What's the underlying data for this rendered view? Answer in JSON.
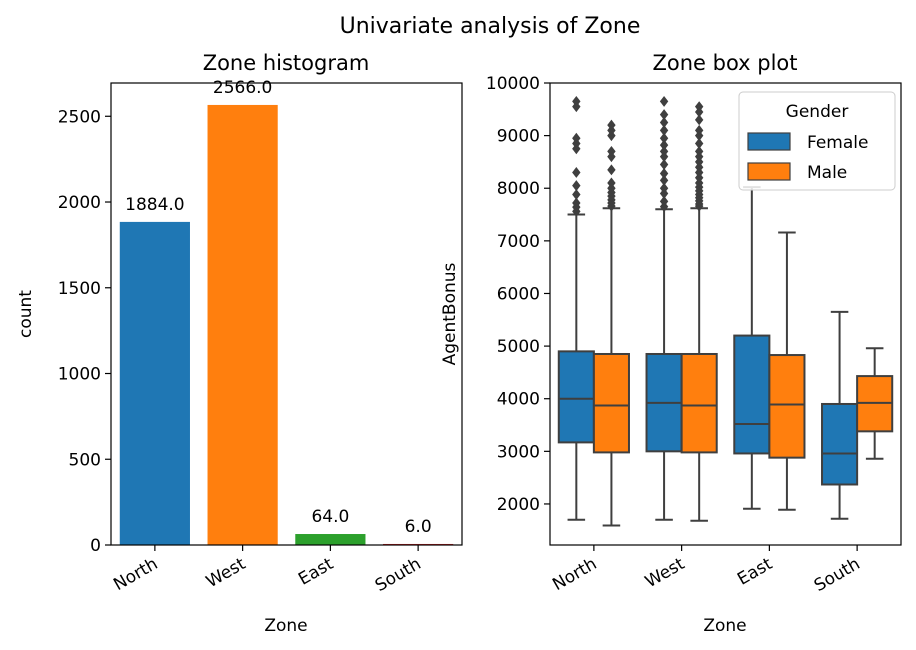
{
  "figure": {
    "suptitle": "Univariate analysis of Zone"
  },
  "chart_data": [
    {
      "type": "bar",
      "title": "Zone histogram",
      "xlabel": "Zone",
      "ylabel": "count",
      "categories": [
        "North",
        "West",
        "East",
        "South"
      ],
      "values": [
        1884.0,
        2566.0,
        64.0,
        6.0
      ],
      "value_labels": [
        "1884.0",
        "2566.0",
        "64.0",
        "6.0"
      ],
      "colors": [
        "#1f77b4",
        "#ff7f0e",
        "#2ca02c",
        "#d62728"
      ],
      "ylim": [
        0,
        2694
      ],
      "yticks": [
        0,
        500,
        1000,
        1500,
        2000,
        2500
      ],
      "ytick_labels": [
        "0",
        "500",
        "1000",
        "1500",
        "2000",
        "2500"
      ],
      "grid": false
    },
    {
      "type": "box",
      "title": "Zone box plot",
      "xlabel": "Zone",
      "ylabel": "AgentBonus",
      "categories": [
        "North",
        "West",
        "East",
        "South"
      ],
      "ylim": [
        1220,
        10000
      ],
      "yticks": [
        2000,
        3000,
        4000,
        5000,
        6000,
        7000,
        8000,
        9000,
        10000
      ],
      "ytick_labels": [
        "2000",
        "3000",
        "4000",
        "5000",
        "6000",
        "7000",
        "8000",
        "9000",
        "10000"
      ],
      "legend": {
        "title": "Gender",
        "position": "top-right"
      },
      "grid": false,
      "series": [
        {
          "name": "Female",
          "color": "#1f77b4",
          "boxes": [
            {
              "category": "North",
              "whislo": 1700,
              "q1": 3170,
              "median": 4000,
              "q3": 4900,
              "whishi": 7500,
              "fliers": [
                7560,
                7640,
                7720,
                7880,
                8050,
                8300,
                8750,
                8850,
                8950,
                9550,
                9650
              ]
            },
            {
              "category": "West",
              "whislo": 1700,
              "q1": 3000,
              "median": 3920,
              "q3": 4850,
              "whishi": 7600,
              "fliers": [
                7650,
                7750,
                7900,
                8000,
                8150,
                8280,
                8450,
                8600,
                8700,
                8820,
                8950,
                9100,
                9250,
                9400,
                9650
              ]
            },
            {
              "category": "East",
              "whislo": 1910,
              "q1": 2960,
              "median": 3520,
              "q3": 5200,
              "whishi": 8020,
              "fliers": []
            },
            {
              "category": "South",
              "whislo": 1720,
              "q1": 2370,
              "median": 2960,
              "q3": 3900,
              "whishi": 5650,
              "fliers": []
            }
          ]
        },
        {
          "name": "Male",
          "color": "#ff7f0e",
          "boxes": [
            {
              "category": "North",
              "whislo": 1590,
              "q1": 2980,
              "median": 3870,
              "q3": 4850,
              "whishi": 7620,
              "fliers": [
                7660,
                7720,
                7780,
                7850,
                7920,
                8000,
                8100,
                8350,
                8600,
                8700,
                9000,
                9100,
                9200
              ]
            },
            {
              "category": "West",
              "whislo": 1680,
              "q1": 2980,
              "median": 3870,
              "q3": 4850,
              "whishi": 7620,
              "fliers": [
                7660,
                7700,
                7760,
                7820,
                7880,
                7950,
                8020,
                8100,
                8200,
                8300,
                8400,
                8500,
                8600,
                8700,
                8850,
                9000,
                9100,
                9300,
                9450,
                9550
              ]
            },
            {
              "category": "East",
              "whislo": 1890,
              "q1": 2880,
              "median": 3890,
              "q3": 4830,
              "whishi": 7160,
              "fliers": []
            },
            {
              "category": "South",
              "whislo": 2860,
              "q1": 3380,
              "median": 3920,
              "q3": 4430,
              "whishi": 4960,
              "fliers": []
            }
          ]
        }
      ]
    }
  ]
}
